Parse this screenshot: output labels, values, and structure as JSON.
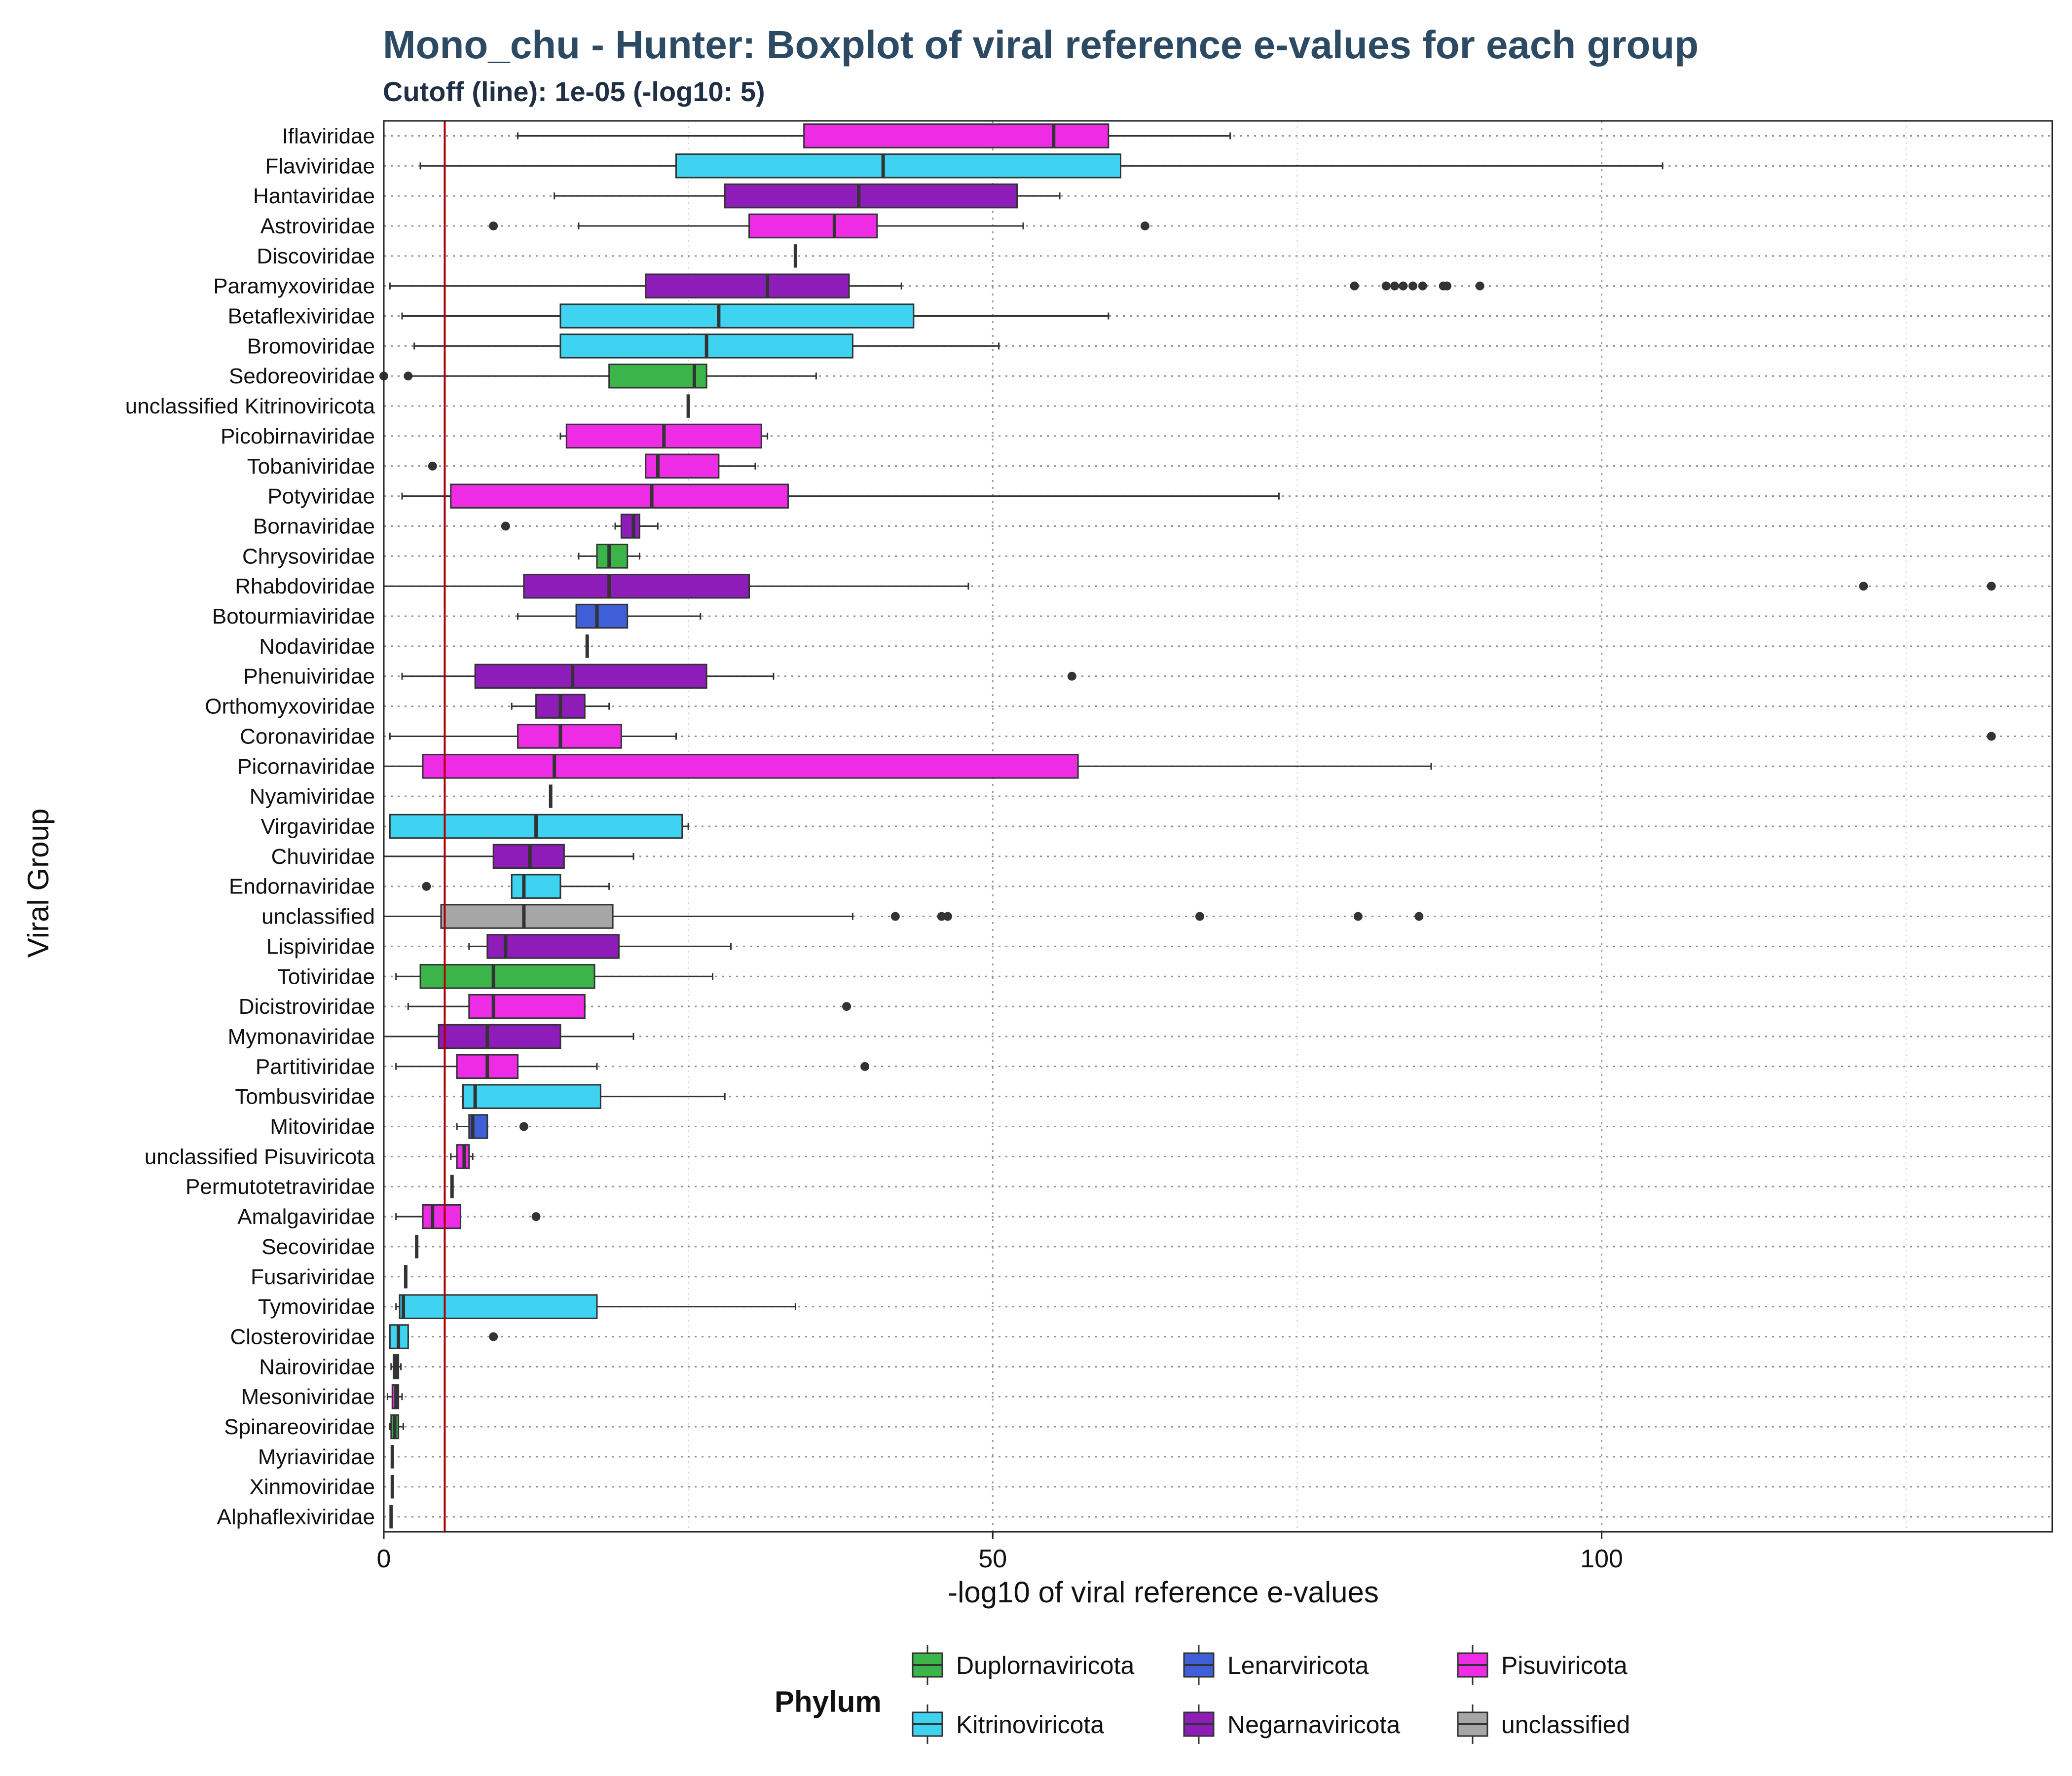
{
  "chart_data": {
    "type": "boxplot",
    "title": "Mono_chu - Hunter: Boxplot of viral reference e-values for each group",
    "subtitle": "Cutoff (line): 1e-05 (-log10: 5)",
    "xlabel": "-log10 of viral reference e-values",
    "ylabel": "Viral Group",
    "xlim": [
      0,
      137
    ],
    "xticks": [
      0,
      50,
      100
    ],
    "cutoff": 5,
    "grid": true,
    "legend_title": "Phylum",
    "legend_position": "bottom",
    "phyla": [
      {
        "name": "Duplornaviricota",
        "color": "#3bb54a"
      },
      {
        "name": "Kitrinoviricota",
        "color": "#3fd3f2"
      },
      {
        "name": "Lenarviricota",
        "color": "#3e5fd8"
      },
      {
        "name": "Negarnaviricota",
        "color": "#8e1cb8"
      },
      {
        "name": "Pisuviricota",
        "color": "#ee2ce6"
      },
      {
        "name": "unclassified",
        "color": "#a6a6a6"
      }
    ],
    "groups": [
      {
        "name": "Iflaviridae",
        "phylum": "Pisuviricota",
        "wlo": 11,
        "q1": 34.5,
        "med": 55,
        "q3": 59.5,
        "whi": 69.5,
        "outliers": []
      },
      {
        "name": "Flaviviridae",
        "phylum": "Kitrinoviricota",
        "wlo": 3,
        "q1": 24,
        "med": 41,
        "q3": 60.5,
        "whi": 105,
        "outliers": []
      },
      {
        "name": "Hantaviridae",
        "phylum": "Negarnaviricota",
        "wlo": 14,
        "q1": 28,
        "med": 39,
        "q3": 52,
        "whi": 55.5,
        "outliers": []
      },
      {
        "name": "Astroviridae",
        "phylum": "Pisuviricota",
        "wlo": 16,
        "q1": 30,
        "med": 37,
        "q3": 40.5,
        "whi": 52.5,
        "outliers": [
          9,
          62.5
        ]
      },
      {
        "name": "Discoviridae",
        "phylum": "Duplornaviricota",
        "wlo": 33.8,
        "q1": 33.8,
        "med": 33.8,
        "q3": 33.8,
        "whi": 33.8,
        "outliers": []
      },
      {
        "name": "Paramyxoviridae",
        "phylum": "Negarnaviricota",
        "wlo": 0.5,
        "q1": 21.5,
        "med": 31.5,
        "q3": 38.2,
        "whi": 42.5,
        "outliers": [
          79.7,
          82.3,
          83,
          83.7,
          84.5,
          85.3,
          87,
          87.3,
          90
        ]
      },
      {
        "name": "Betaflexiviridae",
        "phylum": "Kitrinoviricota",
        "wlo": 1.5,
        "q1": 14.5,
        "med": 27.5,
        "q3": 43.5,
        "whi": 59.5,
        "outliers": []
      },
      {
        "name": "Bromoviridae",
        "phylum": "Kitrinoviricota",
        "wlo": 2.5,
        "q1": 14.5,
        "med": 26.5,
        "q3": 38.5,
        "whi": 50.5,
        "outliers": []
      },
      {
        "name": "Sedoreoviridae",
        "phylum": "Duplornaviricota",
        "wlo": 2,
        "q1": 18.5,
        "med": 25.5,
        "q3": 26.5,
        "whi": 35.5,
        "outliers": [
          0,
          2
        ]
      },
      {
        "name": "unclassified Kitrinoviricota",
        "phylum": "Kitrinoviricota",
        "wlo": 25,
        "q1": 25,
        "med": 25,
        "q3": 25,
        "whi": 25,
        "outliers": []
      },
      {
        "name": "Picobirnaviridae",
        "phylum": "Pisuviricota",
        "wlo": 14.5,
        "q1": 15,
        "med": 23,
        "q3": 31,
        "whi": 31.5,
        "outliers": []
      },
      {
        "name": "Tobaniviridae",
        "phylum": "Pisuviricota",
        "wlo": 21.5,
        "q1": 21.5,
        "med": 22.5,
        "q3": 27.5,
        "whi": 30.5,
        "outliers": [
          4
        ]
      },
      {
        "name": "Potyviridae",
        "phylum": "Pisuviricota",
        "wlo": 1.5,
        "q1": 5.5,
        "med": 22,
        "q3": 33.2,
        "whi": 73.5,
        "outliers": []
      },
      {
        "name": "Bornaviridae",
        "phylum": "Negarnaviricota",
        "wlo": 19,
        "q1": 19.5,
        "med": 20.5,
        "q3": 21,
        "whi": 22.5,
        "outliers": [
          10
        ]
      },
      {
        "name": "Chrysoviridae",
        "phylum": "Duplornaviricota",
        "wlo": 16,
        "q1": 17.5,
        "med": 18.5,
        "q3": 20,
        "whi": 21,
        "outliers": []
      },
      {
        "name": "Rhabdoviridae",
        "phylum": "Negarnaviricota",
        "wlo": 0,
        "q1": 11.5,
        "med": 18.5,
        "q3": 30,
        "whi": 48,
        "outliers": [
          121.5,
          132
        ]
      },
      {
        "name": "Botourmiaviridae",
        "phylum": "Lenarviricota",
        "wlo": 11,
        "q1": 15.8,
        "med": 17.5,
        "q3": 20,
        "whi": 26,
        "outliers": []
      },
      {
        "name": "Nodaviridae",
        "phylum": "Pisuviricota",
        "wlo": 16.7,
        "q1": 16.7,
        "med": 16.7,
        "q3": 16.7,
        "whi": 16.7,
        "outliers": []
      },
      {
        "name": "Phenuiviridae",
        "phylum": "Negarnaviricota",
        "wlo": 1.5,
        "q1": 7.5,
        "med": 15.5,
        "q3": 26.5,
        "whi": 32,
        "outliers": [
          56.5
        ]
      },
      {
        "name": "Orthomyxoviridae",
        "phylum": "Negarnaviricota",
        "wlo": 10.5,
        "q1": 12.5,
        "med": 14.5,
        "q3": 16.5,
        "whi": 18.5,
        "outliers": []
      },
      {
        "name": "Coronaviridae",
        "phylum": "Pisuviricota",
        "wlo": 0.5,
        "q1": 11,
        "med": 14.5,
        "q3": 19.5,
        "whi": 24,
        "outliers": [
          132
        ]
      },
      {
        "name": "Picornaviridae",
        "phylum": "Pisuviricota",
        "wlo": 0,
        "q1": 3.2,
        "med": 14,
        "q3": 57,
        "whi": 86,
        "outliers": []
      },
      {
        "name": "Nyamiviridae",
        "phylum": "Negarnaviricota",
        "wlo": 13.7,
        "q1": 13.7,
        "med": 13.7,
        "q3": 13.7,
        "whi": 13.7,
        "outliers": []
      },
      {
        "name": "Virgaviridae",
        "phylum": "Kitrinoviricota",
        "wlo": 0.5,
        "q1": 0.5,
        "med": 12.5,
        "q3": 24.5,
        "whi": 25,
        "outliers": []
      },
      {
        "name": "Chuviridae",
        "phylum": "Negarnaviricota",
        "wlo": 0,
        "q1": 9,
        "med": 12,
        "q3": 14.8,
        "whi": 20.5,
        "outliers": []
      },
      {
        "name": "Endornaviridae",
        "phylum": "Kitrinoviricota",
        "wlo": 10.5,
        "q1": 10.5,
        "med": 11.5,
        "q3": 14.5,
        "whi": 18.5,
        "outliers": [
          3.5
        ]
      },
      {
        "name": "unclassified",
        "phylum": "unclassified",
        "wlo": 0,
        "q1": 4.7,
        "med": 11.5,
        "q3": 18.8,
        "whi": 38.5,
        "outliers": [
          42,
          45.8,
          46.3,
          67,
          80,
          85
        ]
      },
      {
        "name": "Lispiviridae",
        "phylum": "Negarnaviricota",
        "wlo": 7,
        "q1": 8.5,
        "med": 10,
        "q3": 19.3,
        "whi": 28.5,
        "outliers": []
      },
      {
        "name": "Totiviridae",
        "phylum": "Duplornaviricota",
        "wlo": 1,
        "q1": 3,
        "med": 9,
        "q3": 17.3,
        "whi": 27,
        "outliers": []
      },
      {
        "name": "Dicistroviridae",
        "phylum": "Pisuviricota",
        "wlo": 2,
        "q1": 7,
        "med": 9,
        "q3": 16.5,
        "whi": 16.5,
        "outliers": [
          38
        ]
      },
      {
        "name": "Mymonaviridae",
        "phylum": "Negarnaviricota",
        "wlo": 0,
        "q1": 4.5,
        "med": 8.5,
        "q3": 14.5,
        "whi": 20.5,
        "outliers": []
      },
      {
        "name": "Partitiviridae",
        "phylum": "Pisuviricota",
        "wlo": 1,
        "q1": 6,
        "med": 8.5,
        "q3": 11,
        "whi": 17.5,
        "outliers": [
          39.5
        ]
      },
      {
        "name": "Tombusviridae",
        "phylum": "Kitrinoviricota",
        "wlo": 6.5,
        "q1": 6.5,
        "med": 7.5,
        "q3": 17.8,
        "whi": 28,
        "outliers": []
      },
      {
        "name": "Mitoviridae",
        "phylum": "Lenarviricota",
        "wlo": 6,
        "q1": 7,
        "med": 7.3,
        "q3": 8.5,
        "whi": 8.5,
        "outliers": [
          11.5
        ]
      },
      {
        "name": "unclassified Pisuviricota",
        "phylum": "Pisuviricota",
        "wlo": 5.5,
        "q1": 6,
        "med": 6.6,
        "q3": 7,
        "whi": 7.3,
        "outliers": []
      },
      {
        "name": "Permutotetraviridae",
        "phylum": "Pisuviricota",
        "wlo": 5.6,
        "q1": 5.6,
        "med": 5.6,
        "q3": 5.6,
        "whi": 5.6,
        "outliers": []
      },
      {
        "name": "Amalgaviridae",
        "phylum": "Pisuviricota",
        "wlo": 1,
        "q1": 3.2,
        "med": 4,
        "q3": 6.3,
        "whi": 6.3,
        "outliers": [
          12.5
        ]
      },
      {
        "name": "Secoviridae",
        "phylum": "Pisuviricota",
        "wlo": 2.7,
        "q1": 2.7,
        "med": 2.7,
        "q3": 2.7,
        "whi": 2.7,
        "outliers": []
      },
      {
        "name": "Fusariviridae",
        "phylum": "Pisuviricota",
        "wlo": 1.8,
        "q1": 1.8,
        "med": 1.8,
        "q3": 1.8,
        "whi": 1.8,
        "outliers": []
      },
      {
        "name": "Tymoviridae",
        "phylum": "Kitrinoviricota",
        "wlo": 1,
        "q1": 1.3,
        "med": 1.6,
        "q3": 17.5,
        "whi": 33.8,
        "outliers": []
      },
      {
        "name": "Closteroviridae",
        "phylum": "Kitrinoviricota",
        "wlo": 0.5,
        "q1": 0.5,
        "med": 1.2,
        "q3": 2,
        "whi": 2,
        "outliers": [
          9
        ]
      },
      {
        "name": "Nairoviridae",
        "phylum": "Negarnaviricota",
        "wlo": 0.6,
        "q1": 0.8,
        "med": 1,
        "q3": 1.2,
        "whi": 1.4,
        "outliers": []
      },
      {
        "name": "Mesoniviridae",
        "phylum": "Pisuviricota",
        "wlo": 0.3,
        "q1": 0.7,
        "med": 1,
        "q3": 1.2,
        "whi": 1.5,
        "outliers": []
      },
      {
        "name": "Spinareoviridae",
        "phylum": "Duplornaviricota",
        "wlo": 0.5,
        "q1": 0.6,
        "med": 0.9,
        "q3": 1.2,
        "whi": 1.6,
        "outliers": []
      },
      {
        "name": "Myriaviridae",
        "phylum": "Negarnaviricota",
        "wlo": 0.7,
        "q1": 0.7,
        "med": 0.7,
        "q3": 0.7,
        "whi": 0.7,
        "outliers": []
      },
      {
        "name": "Xinmoviridae",
        "phylum": "Negarnaviricota",
        "wlo": 0.7,
        "q1": 0.7,
        "med": 0.7,
        "q3": 0.7,
        "whi": 0.7,
        "outliers": []
      },
      {
        "name": "Alphaflexiviridae",
        "phylum": "Kitrinoviricota",
        "wlo": 0.6,
        "q1": 0.6,
        "med": 0.6,
        "q3": 0.6,
        "whi": 0.6,
        "outliers": []
      }
    ]
  }
}
